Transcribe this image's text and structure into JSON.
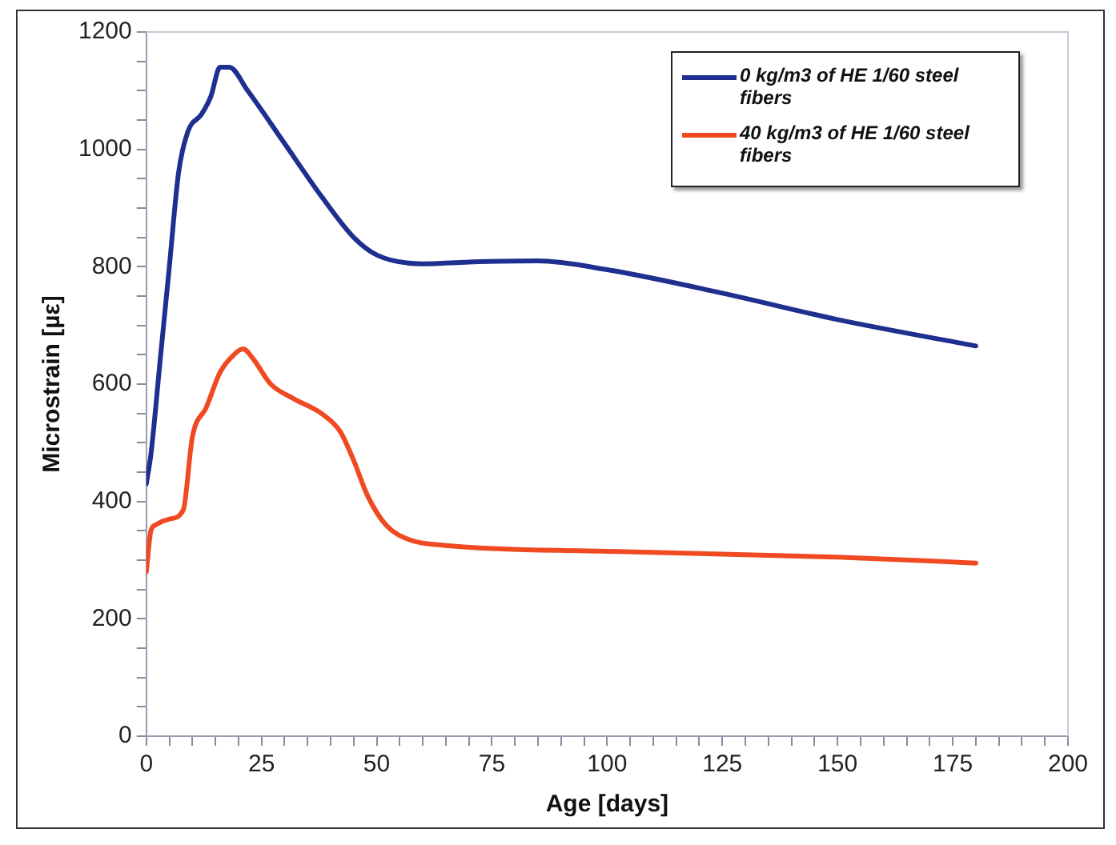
{
  "chart_data": {
    "type": "line",
    "xlabel": "Age [days]",
    "ylabel": "Microstrain [µε]",
    "xlim": [
      0,
      200
    ],
    "ylim": [
      0,
      1200
    ],
    "xticks": [
      0,
      {
        "value": 5,
        "label": null
      },
      {
        "value": 10,
        "label": null
      },
      {
        "value": 15,
        "label": null
      },
      {
        "value": 20,
        "label": null
      },
      25,
      {
        "value": 30,
        "label": null
      },
      {
        "value": 35,
        "label": null
      },
      {
        "value": 40,
        "label": null
      },
      {
        "value": 45,
        "label": null
      },
      50,
      {
        "value": 55,
        "label": null
      },
      {
        "value": 60,
        "label": null
      },
      {
        "value": 65,
        "label": null
      },
      {
        "value": 70,
        "label": null
      },
      75,
      {
        "value": 80,
        "label": null
      },
      {
        "value": 85,
        "label": null
      },
      {
        "value": 90,
        "label": null
      },
      {
        "value": 95,
        "label": null
      },
      100,
      {
        "value": 105,
        "label": null
      },
      {
        "value": 110,
        "label": null
      },
      {
        "value": 115,
        "label": null
      },
      {
        "value": 120,
        "label": null
      },
      125,
      {
        "value": 130,
        "label": null
      },
      {
        "value": 135,
        "label": null
      },
      {
        "value": 140,
        "label": null
      },
      {
        "value": 145,
        "label": null
      },
      150,
      {
        "value": 155,
        "label": null
      },
      {
        "value": 160,
        "label": null
      },
      {
        "value": 165,
        "label": null
      },
      {
        "value": 170,
        "label": null
      },
      175,
      {
        "value": 180,
        "label": null
      },
      {
        "value": 185,
        "label": null
      },
      {
        "value": 190,
        "label": null
      },
      {
        "value": 195,
        "label": null
      },
      200
    ],
    "yticks": [
      0,
      {
        "value": 50,
        "label": null
      },
      {
        "value": 100,
        "label": null
      },
      {
        "value": 150,
        "label": null
      },
      200,
      {
        "value": 250,
        "label": null
      },
      {
        "value": 300,
        "label": null
      },
      {
        "value": 350,
        "label": null
      },
      400,
      {
        "value": 450,
        "label": null
      },
      {
        "value": 500,
        "label": null
      },
      {
        "value": 550,
        "label": null
      },
      600,
      {
        "value": 650,
        "label": null
      },
      {
        "value": 700,
        "label": null
      },
      {
        "value": 750,
        "label": null
      },
      800,
      {
        "value": 850,
        "label": null
      },
      {
        "value": 900,
        "label": null
      },
      {
        "value": 950,
        "label": null
      },
      1000,
      {
        "value": 1050,
        "label": null
      },
      {
        "value": 1100,
        "label": null
      },
      {
        "value": 1150,
        "label": null
      },
      1200
    ],
    "grid": false,
    "legend": "top right",
    "marker": "none",
    "line_style": "solid",
    "series": [
      {
        "name": "0 kg/m3 of HE 1/60 steel fibers",
        "color": "#1f2f8f",
        "x": [
          0,
          1,
          3,
          5,
          7,
          9,
          12,
          14,
          16,
          18,
          22,
          30,
          38,
          45,
          50,
          60,
          70,
          85,
          100,
          125,
          150,
          180
        ],
        "values": [
          430,
          480,
          640,
          800,
          960,
          1030,
          1060,
          1090,
          1140,
          1140,
          1100,
          1010,
          920,
          850,
          820,
          805,
          808,
          810,
          795,
          755,
          710,
          665
        ]
      },
      {
        "name": "40 kg/m3 of HE 1/60 steel fibers",
        "color": "#f04a22",
        "x": [
          0,
          1,
          2,
          5,
          8,
          10,
          13,
          16,
          19,
          21,
          23,
          27,
          32,
          38,
          42,
          45,
          48,
          52,
          57,
          65,
          100,
          150,
          180
        ],
        "values": [
          280,
          350,
          360,
          370,
          385,
          510,
          560,
          620,
          650,
          660,
          645,
          600,
          575,
          550,
          520,
          470,
          410,
          360,
          335,
          325,
          315,
          305,
          295
        ]
      }
    ]
  }
}
